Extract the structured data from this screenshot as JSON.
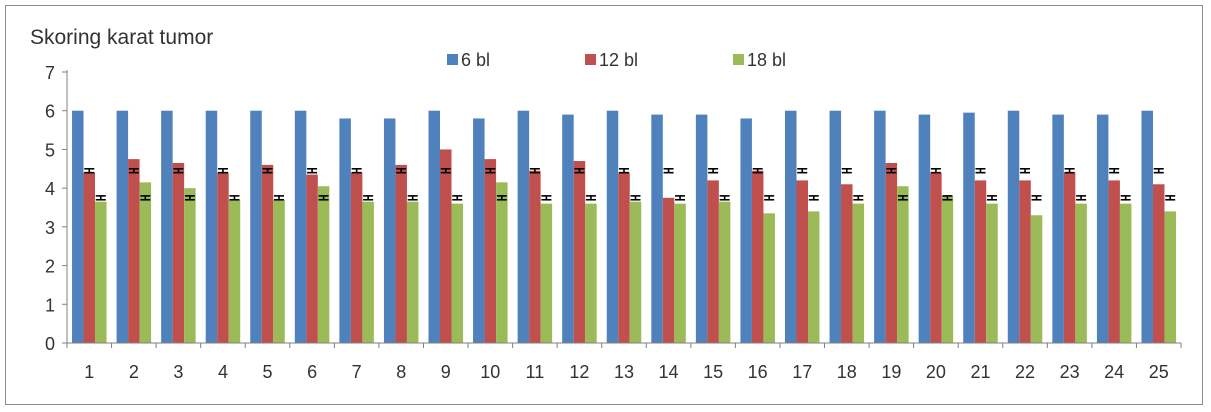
{
  "chart_data": {
    "type": "bar",
    "title": "Skoring karat tumor",
    "xlabel": "",
    "ylabel": "",
    "ylim": [
      0,
      7
    ],
    "yticks": [
      0,
      1,
      2,
      3,
      4,
      5,
      6,
      7
    ],
    "grid": false,
    "legend_position": "top-center",
    "categories": [
      "1",
      "2",
      "3",
      "4",
      "5",
      "6",
      "7",
      "8",
      "9",
      "10",
      "11",
      "12",
      "13",
      "14",
      "15",
      "16",
      "17",
      "18",
      "19",
      "20",
      "21",
      "22",
      "23",
      "24",
      "25"
    ],
    "series": [
      {
        "name": "6 bl",
        "color": "#4f81bd",
        "values": [
          6,
          6,
          6,
          6,
          6,
          6,
          5.8,
          5.8,
          6,
          5.8,
          6,
          5.9,
          6,
          5.9,
          5.9,
          5.8,
          6,
          6,
          6,
          5.9,
          5.95,
          6,
          5.9,
          5.9,
          6
        ]
      },
      {
        "name": "12 bl",
        "color": "#c0504d",
        "values": [
          4.4,
          4.75,
          4.65,
          4.4,
          4.6,
          4.35,
          4.4,
          4.6,
          5.0,
          4.75,
          4.45,
          4.7,
          4.4,
          3.75,
          4.2,
          4.45,
          4.2,
          4.1,
          4.65,
          4.4,
          4.2,
          4.2,
          4.4,
          4.2,
          4.1
        ]
      },
      {
        "name": "18 bl",
        "color": "#9bbb59",
        "values": [
          3.65,
          4.15,
          4.0,
          3.7,
          3.7,
          4.05,
          3.65,
          3.65,
          3.6,
          4.15,
          3.6,
          3.6,
          3.65,
          3.6,
          3.65,
          3.35,
          3.4,
          3.6,
          4.05,
          3.8,
          3.6,
          3.3,
          3.6,
          3.6,
          3.4
        ]
      }
    ],
    "error_bars": [
      {
        "series": "12 bl",
        "value": 4.45,
        "error": 0.05
      },
      {
        "series": "18 bl",
        "value": 3.75,
        "error": 0.05
      }
    ]
  }
}
